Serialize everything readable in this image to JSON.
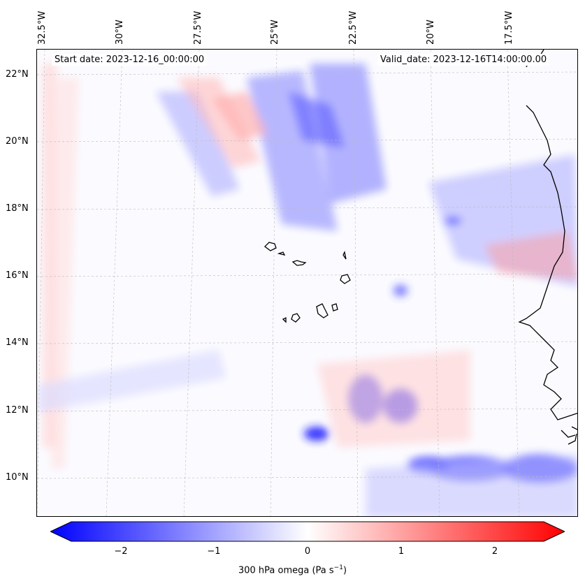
{
  "header": {
    "start_date": "Start date: 2023-12-16_00:00:00",
    "valid_date": "Valid_date: 2023-12-16T14:00:00.00"
  },
  "axes": {
    "lon_labels": [
      "32.5°W",
      "30°W",
      "27.5°W",
      "25°W",
      "22.5°W",
      "20°W",
      "17.5°W"
    ],
    "lat_labels": [
      "22°N",
      "20°N",
      "18°N",
      "16°N",
      "14°N",
      "12°N",
      "10°N"
    ]
  },
  "colorbar": {
    "ticks": [
      "−2",
      "−1",
      "0",
      "1",
      "2"
    ],
    "label": "300 hPa omega (Pa s",
    "label_exp": "−1",
    "label_end": ")",
    "min_color": "#0000ff",
    "mid_color": "#ffffff",
    "max_color": "#ff0000"
  },
  "map": {
    "field": "300 hPa omega",
    "projection_note": "Cape Verde region, West Africa coast",
    "colors": {
      "coast": "#000000",
      "grid": "#bbbbbb"
    }
  }
}
